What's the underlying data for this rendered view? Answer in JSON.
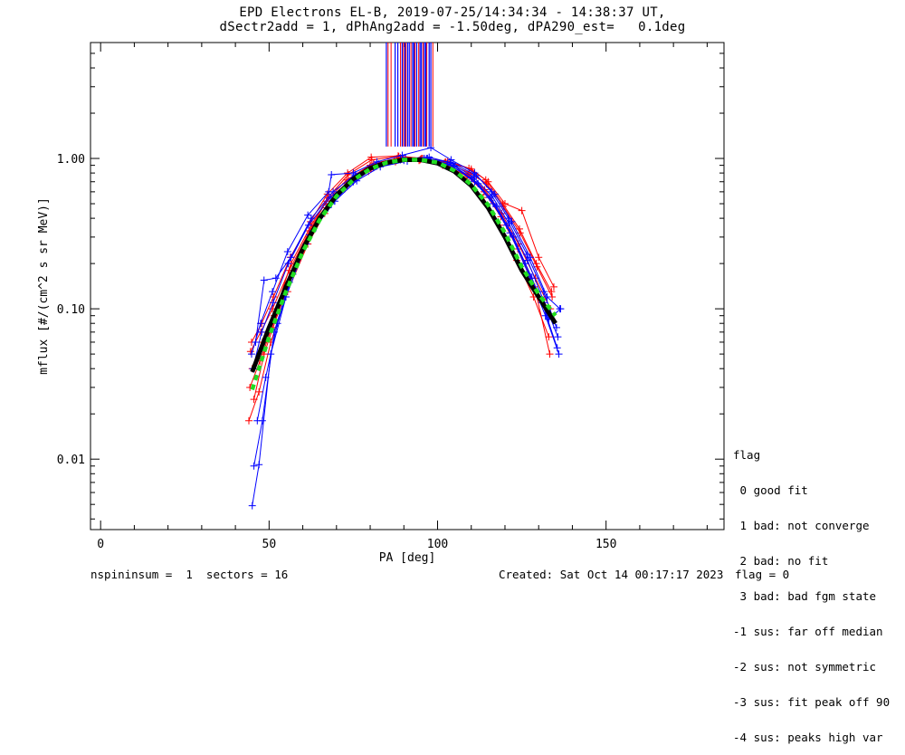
{
  "title": {
    "line1": "EPD Electrons EL-B, 2019-07-25/14:34:34 - 14:38:37 UT,",
    "line2": "dSectr2add = 1, dPhAng2add = -1.50deg, dPA290_est=   0.1deg"
  },
  "legend": {
    "title": "flag",
    "items": [
      " 0 good fit",
      " 1 bad: not converge",
      " 2 bad: no fit",
      " 3 bad: bad fgm state",
      "-1 sus: far off median",
      "-2 sus: not symmetric",
      "-3 sus: fit peak off 90",
      "-4 sus: peaks high var"
    ]
  },
  "footer": {
    "left": "nspininsum =  1  sectors = 16",
    "created": "Created: Sat Oct 14 00:17:17 2023",
    "flag": "flag = 0"
  },
  "colors": {
    "red_series": "#ff0000",
    "blue_series": "#0000ff",
    "fit_black": "#000000",
    "fit_green": "#22dd22",
    "axes": "#000000"
  },
  "chart_data": {
    "type": "line",
    "xlabel": "PA [deg]",
    "ylabel": "mflux [#/(cm^2 s sr MeV)]",
    "xlim": [
      -3,
      185
    ],
    "xscale": "linear",
    "ylim": [
      0.0034,
      5.9
    ],
    "yscale": "log",
    "xticks": [
      0,
      50,
      100,
      150
    ],
    "xticklabels": [
      "0",
      "50",
      "100",
      "150"
    ],
    "yticks": [
      0.01,
      0.1,
      1.0
    ],
    "yticklabels": [
      "0.01",
      "0.10",
      "1.00"
    ],
    "grid": false,
    "legend_position": "right",
    "peak_lines": {
      "y_range": [
        1.2,
        5.9
      ],
      "red_x": [
        85.3,
        86.2,
        89.0,
        89.9,
        90.6,
        92.1,
        93.3,
        94.4,
        95.7,
        96.8,
        98.6
      ],
      "blue_x": [
        84.8,
        87.4,
        88.2,
        89.5,
        90.3,
        91.1,
        91.6,
        92.6,
        93.0,
        93.8,
        94.8,
        95.2,
        96.1,
        96.5,
        97.5,
        98.0
      ]
    },
    "series": [
      {
        "color": "red",
        "x": [
          44.5,
          47.5,
          51.0,
          56.0,
          62.0,
          67.0,
          73.0,
          80.0,
          88.0,
          95.0,
          102.0,
          109.0,
          114.0,
          119.0,
          124.0,
          129.0,
          133.5
        ],
        "y": [
          0.052,
          0.07,
          0.1,
          0.18,
          0.33,
          0.52,
          0.72,
          0.9,
          1.0,
          0.99,
          0.93,
          0.78,
          0.62,
          0.43,
          0.27,
          0.16,
          0.1
        ]
      },
      {
        "color": "red",
        "x": [
          44.0,
          47.0,
          50.5,
          55.5,
          61.5,
          66.5,
          72.5,
          79.5,
          87.5,
          94.5,
          101.5,
          108.5,
          113.5,
          118.5,
          123.5,
          128.5,
          133.0
        ],
        "y": [
          0.018,
          0.028,
          0.06,
          0.13,
          0.27,
          0.43,
          0.63,
          0.82,
          0.95,
          0.97,
          0.9,
          0.72,
          0.55,
          0.36,
          0.21,
          0.12,
          0.065
        ]
      },
      {
        "color": "red",
        "x": [
          45.0,
          48.0,
          51.5,
          56.5,
          62.5,
          67.5,
          73.5,
          80.5,
          88.5,
          95.5,
          102.5,
          109.5,
          114.5,
          119.5,
          124.5,
          129.5,
          134.0
        ],
        "y": [
          0.04,
          0.06,
          0.09,
          0.2,
          0.36,
          0.55,
          0.78,
          0.98,
          1.03,
          1.0,
          0.94,
          0.8,
          0.68,
          0.48,
          0.32,
          0.19,
          0.12
        ]
      },
      {
        "color": "red",
        "x": [
          44.3,
          47.3,
          50.8,
          55.8,
          61.8,
          66.8,
          72.8,
          79.8,
          87.8,
          94.8,
          101.8,
          108.8,
          113.8,
          118.8,
          123.8,
          128.8,
          133.3
        ],
        "y": [
          0.03,
          0.045,
          0.075,
          0.15,
          0.3,
          0.47,
          0.68,
          0.87,
          0.97,
          0.98,
          0.92,
          0.76,
          0.6,
          0.41,
          0.25,
          0.14,
          0.05
        ]
      },
      {
        "color": "red",
        "x": [
          45.5,
          48.5,
          52.0,
          57.0,
          63.0,
          68.0,
          74.0,
          81.0,
          89.0,
          96.0,
          103.0,
          110.0,
          115.0,
          120.0,
          125.0,
          130.0,
          134.5
        ],
        "y": [
          0.025,
          0.05,
          0.085,
          0.17,
          0.34,
          0.5,
          0.7,
          0.93,
          1.01,
          1.0,
          0.96,
          0.85,
          0.7,
          0.5,
          0.45,
          0.22,
          0.14
        ]
      },
      {
        "color": "red",
        "x": [
          44.8,
          47.8,
          51.3,
          56.3,
          62.3,
          67.3,
          73.3,
          80.3,
          88.3,
          95.3,
          102.3,
          109.3,
          114.3,
          119.3,
          124.3,
          129.3,
          133.8
        ],
        "y": [
          0.06,
          0.08,
          0.12,
          0.22,
          0.38,
          0.58,
          0.8,
          1.02,
          1.04,
          1.0,
          0.95,
          0.86,
          0.72,
          0.5,
          0.34,
          0.2,
          0.13
        ]
      },
      {
        "color": "blue",
        "x": [
          45.0,
          47.0,
          50.5,
          55.0,
          61.0,
          67.5,
          74.0,
          81.0,
          89.0,
          96.0,
          103.0,
          110.0,
          115.5,
          120.5,
          126.0,
          131.0,
          135.5
        ],
        "y": [
          0.0049,
          0.0092,
          0.05,
          0.12,
          0.27,
          0.47,
          0.68,
          0.87,
          0.98,
          1.0,
          0.92,
          0.74,
          0.55,
          0.36,
          0.2,
          0.11,
          0.055
        ]
      },
      {
        "color": "blue",
        "x": [
          45.5,
          48.0,
          51.5,
          56.0,
          62.0,
          68.5,
          75.0,
          82.0,
          90.0,
          97.0,
          104.0,
          111.0,
          116.5,
          121.5,
          127.0,
          132.0,
          136.0
        ],
        "y": [
          0.009,
          0.018,
          0.07,
          0.15,
          0.31,
          0.5,
          0.7,
          0.89,
          0.97,
          1.0,
          0.9,
          0.7,
          0.5,
          0.32,
          0.17,
          0.09,
          0.05
        ]
      },
      {
        "color": "blue",
        "x": [
          46.0,
          48.5,
          52.0,
          56.5,
          62.5,
          69.0,
          75.5,
          82.5,
          90.5,
          97.5,
          104.5,
          111.5,
          117.0,
          122.0,
          127.5,
          132.5,
          136.3
        ],
        "y": [
          0.06,
          0.155,
          0.16,
          0.22,
          0.4,
          0.6,
          0.78,
          0.92,
          1.0,
          1.02,
          0.93,
          0.77,
          0.58,
          0.38,
          0.22,
          0.12,
          0.1
        ]
      },
      {
        "color": "blue",
        "x": [
          45.2,
          47.8,
          51.2,
          55.7,
          61.7,
          68.2,
          74.7,
          81.7,
          89.7,
          96.7,
          103.7,
          110.7,
          116.2,
          121.2,
          126.7,
          131.7,
          135.7
        ],
        "y": [
          0.04,
          0.07,
          0.11,
          0.2,
          0.36,
          0.55,
          0.73,
          0.9,
          1.0,
          1.0,
          0.94,
          0.75,
          0.56,
          0.37,
          0.21,
          0.11,
          0.065
        ]
      },
      {
        "color": "blue",
        "x": [
          44.8,
          47.5,
          51.0,
          55.5,
          61.5,
          67.7,
          68.5,
          75.0,
          82.0,
          89.5,
          98.0,
          104.0,
          111.0,
          116.0,
          121.0,
          126.5,
          131.5,
          135.3
        ],
        "y": [
          0.05,
          0.08,
          0.13,
          0.24,
          0.42,
          0.6,
          0.78,
          0.8,
          0.95,
          1.05,
          1.18,
          0.98,
          0.8,
          0.6,
          0.4,
          0.23,
          0.13,
          0.075
        ]
      },
      {
        "color": "blue",
        "x": [
          46.5,
          49.0,
          52.5,
          57.0,
          63.0,
          69.5,
          76.0,
          83.0,
          91.0,
          98.0,
          105.0,
          112.0,
          117.5,
          122.5,
          128.0,
          133.0,
          136.5
        ],
        "y": [
          0.018,
          0.035,
          0.08,
          0.17,
          0.33,
          0.52,
          0.71,
          0.88,
          0.96,
          0.98,
          0.89,
          0.68,
          0.48,
          0.3,
          0.16,
          0.085,
          0.1
        ]
      }
    ],
    "fit_curves": [
      {
        "name_color": "black",
        "x": [
          45,
          50,
          55,
          60,
          65,
          70,
          75,
          80,
          85,
          90,
          95,
          100,
          105,
          110,
          115,
          120,
          125,
          130,
          135
        ],
        "y": [
          0.038,
          0.075,
          0.14,
          0.25,
          0.4,
          0.57,
          0.73,
          0.86,
          0.94,
          0.98,
          0.98,
          0.93,
          0.82,
          0.66,
          0.47,
          0.3,
          0.18,
          0.12,
          0.08
        ]
      },
      {
        "name_color": "green",
        "x": [
          45,
          50,
          55,
          60,
          65,
          70,
          75,
          80,
          85,
          90,
          95,
          100,
          105,
          110,
          115,
          120,
          125,
          130,
          135
        ],
        "y": [
          0.029,
          0.065,
          0.13,
          0.24,
          0.39,
          0.56,
          0.72,
          0.85,
          0.94,
          0.98,
          0.98,
          0.94,
          0.83,
          0.67,
          0.49,
          0.32,
          0.19,
          0.125,
          0.09
        ]
      }
    ]
  }
}
